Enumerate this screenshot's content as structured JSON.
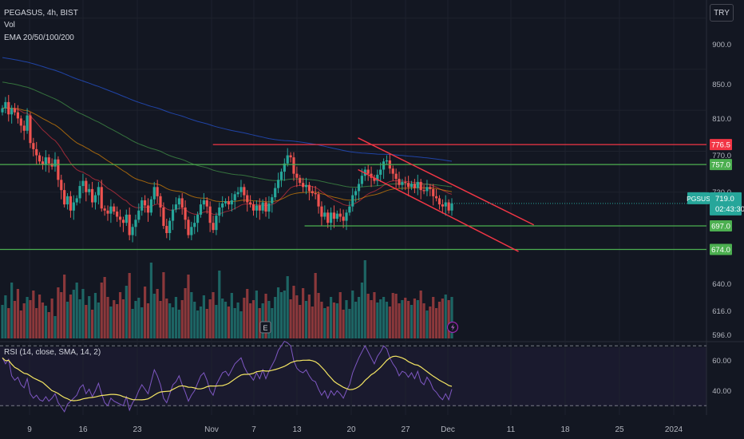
{
  "header": {
    "symbol_line": "PEGASUS, 4h, BIST",
    "vol_label": "Vol",
    "ema_label": "EMA 20/50/100/200",
    "currency": "TRY"
  },
  "symbol_tag": {
    "name": "PGSUS",
    "price": "719.0",
    "countdown": "02:43:30"
  },
  "rsi_label": "RSI (14, close, SMA, 14, 2)",
  "earnings_marker": "E",
  "chart_data": {
    "type": "candlestick",
    "title": "PEGASUS, 4h, BIST",
    "price_axis_ticks": [
      "900.0",
      "850.0",
      "810.0",
      "770.0",
      "730.0",
      "640.0",
      "616.0",
      "596.0"
    ],
    "price_tags": [
      {
        "label": "776.5",
        "value": 776.5,
        "color": "#f23645"
      },
      {
        "label": "757.0",
        "value": 757.0,
        "color": "#4caf50"
      },
      {
        "label": "697.0",
        "value": 697.0,
        "color": "#4caf50"
      },
      {
        "label": "674.0",
        "value": 674.0,
        "color": "#4caf50"
      }
    ],
    "rsi_axis_ticks": [
      "60.00",
      "40.00"
    ],
    "x_ticks": [
      "9",
      "16",
      "23",
      "Nov",
      "7",
      "13",
      "20",
      "27",
      "Dec",
      "11",
      "18",
      "25",
      "2024"
    ],
    "horizontal_lines": [
      {
        "value": 776.5,
        "x_from": "Nov 1",
        "color": "#f23645"
      },
      {
        "value": 757.0,
        "color": "#4caf50"
      },
      {
        "value": 697.0,
        "x_from": "Nov 13",
        "color": "#4caf50"
      },
      {
        "value": 674.0,
        "color": "#4caf50"
      }
    ],
    "trend_channel": {
      "color": "#f23645",
      "upper": [
        [
          "Nov 20",
          783
        ],
        [
          "Dec 13",
          698
        ]
      ],
      "lower": [
        [
          "Nov 20",
          752
        ],
        [
          "Dec 11",
          672
        ]
      ]
    },
    "closes": [
      812,
      818,
      806,
      812,
      808,
      802,
      795,
      790,
      805,
      778,
      772,
      766,
      760,
      757,
      764,
      758,
      755,
      762,
      742,
      732,
      718,
      726,
      712,
      720,
      724,
      736,
      741,
      730,
      733,
      720,
      727,
      735,
      714,
      712,
      709,
      716,
      711,
      706,
      703,
      700,
      708,
      688,
      696,
      703,
      712,
      722,
      717,
      710,
      723,
      735,
      726,
      715,
      697,
      690,
      702,
      713,
      718,
      724,
      715,
      703,
      688,
      696,
      700,
      708,
      718,
      722,
      716,
      700,
      693,
      707,
      715,
      719,
      721,
      718,
      722,
      728,
      730,
      735,
      727,
      720,
      718,
      712,
      717,
      712,
      720,
      711,
      719,
      725,
      734,
      742,
      750,
      758,
      766,
      764,
      748,
      744,
      739,
      735,
      737,
      731,
      729,
      728,
      716,
      706,
      710,
      700,
      710,
      704,
      709,
      706,
      702,
      710,
      716,
      727,
      731,
      738,
      746,
      752,
      748,
      744,
      741,
      747,
      752,
      760,
      761,
      753,
      748,
      743,
      737,
      740,
      739,
      735,
      738,
      734,
      740,
      732,
      731,
      735,
      733,
      726,
      724,
      718,
      716,
      720,
      712,
      719
    ],
    "volume": [
      42,
      54,
      38,
      70,
      47,
      62,
      35,
      44,
      52,
      48,
      60,
      38,
      55,
      45,
      41,
      33,
      50,
      28,
      64,
      58,
      80,
      46,
      55,
      61,
      70,
      49,
      62,
      42,
      53,
      36,
      57,
      45,
      70,
      77,
      52,
      40,
      48,
      43,
      58,
      49,
      66,
      82,
      37,
      47,
      51,
      39,
      65,
      44,
      95,
      56,
      62,
      47,
      83,
      50,
      44,
      39,
      52,
      36,
      48,
      63,
      80,
      58,
      46,
      35,
      40,
      54,
      37,
      49,
      58,
      42,
      85,
      50,
      46,
      40,
      57,
      38,
      45,
      34,
      51,
      62,
      44,
      48,
      60,
      38,
      44,
      56,
      47,
      38,
      52,
      64,
      58,
      60,
      78,
      49,
      66,
      54,
      42,
      63,
      47,
      55,
      40,
      82,
      57,
      46,
      38,
      40,
      52,
      45,
      44,
      58,
      36,
      48,
      37,
      60,
      46,
      52,
      70,
      98,
      56,
      48,
      58,
      45,
      49,
      52,
      46,
      40,
      57,
      56,
      44,
      48,
      51,
      47,
      42,
      50,
      48,
      60,
      44,
      35,
      40,
      52,
      38,
      46,
      50,
      55,
      48,
      52
    ],
    "rsi": [
      62,
      58,
      61,
      50,
      47,
      49,
      44,
      42,
      48,
      38,
      35,
      37,
      34,
      33,
      36,
      33,
      35,
      38,
      32,
      29,
      26,
      31,
      33,
      35,
      37,
      42,
      44,
      38,
      41,
      36,
      40,
      45,
      38,
      32,
      30,
      35,
      33,
      32,
      31,
      30,
      36,
      27,
      32,
      35,
      40,
      44,
      41,
      38,
      46,
      54,
      50,
      44,
      35,
      32,
      38,
      44,
      46,
      50,
      44,
      39,
      33,
      37,
      40,
      45,
      50,
      52,
      47,
      40,
      37,
      44,
      48,
      52,
      53,
      50,
      54,
      58,
      60,
      62,
      56,
      52,
      50,
      47,
      52,
      48,
      54,
      48,
      53,
      57,
      61,
      67,
      70,
      73,
      72,
      70,
      60,
      55,
      53,
      52,
      54,
      50,
      47,
      46,
      41,
      37,
      40,
      35,
      40,
      37,
      40,
      38,
      35,
      40,
      44,
      52,
      57,
      62,
      66,
      70,
      66,
      62,
      58,
      63,
      66,
      70,
      68,
      62,
      58,
      55,
      50,
      53,
      52,
      49,
      52,
      48,
      53,
      46,
      44,
      49,
      46,
      41,
      39,
      36,
      34,
      38,
      34,
      41
    ]
  }
}
